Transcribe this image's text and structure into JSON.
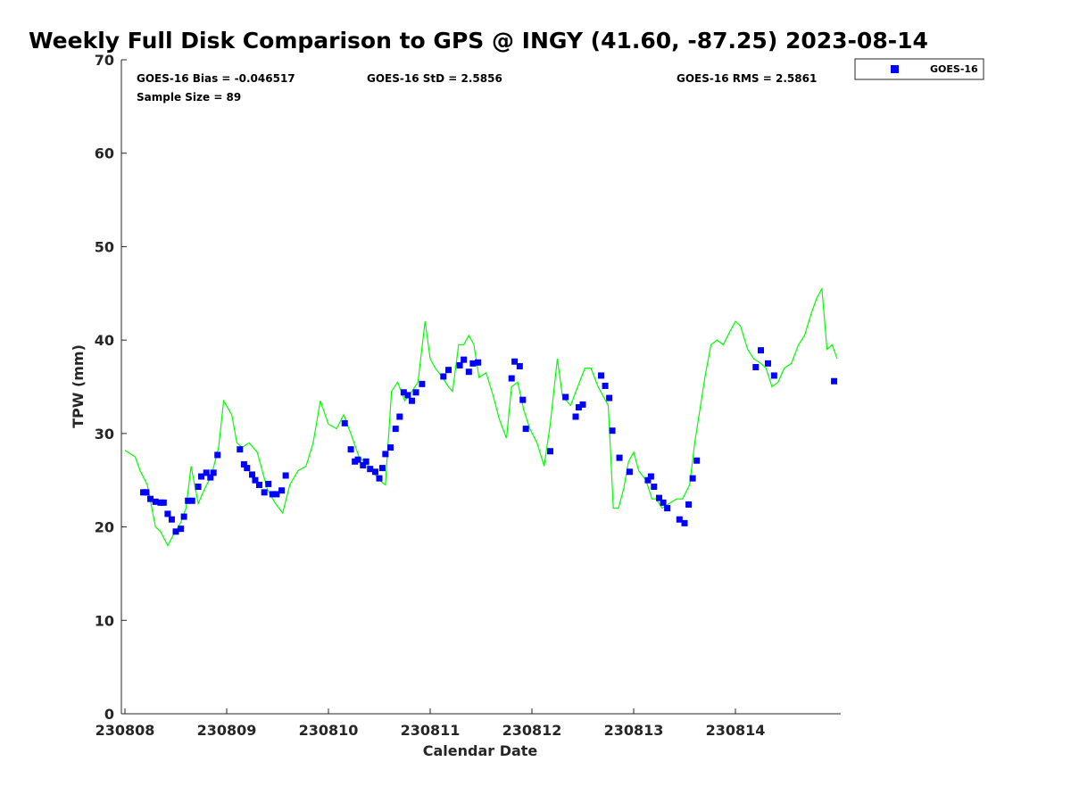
{
  "chart_data": {
    "type": "scatter",
    "title": "Weekly Full Disk Comparison to GPS @ INGY (41.60, -87.25) 2023-08-14",
    "xlabel": "Calendar Date",
    "ylabel": "TPW (mm)",
    "ylim": [
      0,
      70
    ],
    "yticks": [
      0,
      10,
      20,
      30,
      40,
      50,
      60,
      70
    ],
    "xlim_day_fraction": [
      0,
      7.0
    ],
    "xticks": [
      {
        "label": "230808",
        "day": 0
      },
      {
        "label": "230809",
        "day": 1
      },
      {
        "label": "230810",
        "day": 2
      },
      {
        "label": "230811",
        "day": 3
      },
      {
        "label": "230812",
        "day": 4
      },
      {
        "label": "230813",
        "day": 5
      },
      {
        "label": "230814",
        "day": 6
      }
    ],
    "grid": false,
    "legend_position": "top-right",
    "stats": {
      "bias": "GOES-16 Bias = -0.046517",
      "std": "GOES-16 StD = 2.5856",
      "rms": "GOES-16 RMS = 2.5861",
      "sample": "Sample Size = 89"
    },
    "colors": {
      "goes": "#0000ff",
      "gps": "#00ff00",
      "axis": "#262626"
    },
    "series": [
      {
        "name": "GOES-16",
        "marker": "square",
        "x": [
          0.18,
          0.21,
          0.25,
          0.3,
          0.35,
          0.38,
          0.42,
          0.46,
          0.5,
          0.55,
          0.58,
          0.62,
          0.66,
          0.72,
          0.75,
          0.8,
          0.84,
          0.87,
          0.91,
          1.13,
          1.17,
          1.2,
          1.25,
          1.28,
          1.32,
          1.37,
          1.41,
          1.45,
          1.49,
          1.54,
          1.58,
          2.16,
          2.22,
          2.26,
          2.29,
          2.34,
          2.37,
          2.41,
          2.46,
          2.5,
          2.53,
          2.56,
          2.61,
          2.66,
          2.7,
          2.74,
          2.78,
          2.82,
          2.86,
          2.92,
          3.13,
          3.18,
          3.29,
          3.33,
          3.38,
          3.42,
          3.47,
          3.8,
          3.83,
          3.88,
          3.91,
          3.94,
          4.18,
          4.33,
          4.43,
          4.46,
          4.5,
          4.68,
          4.72,
          4.76,
          4.79,
          4.86,
          4.96,
          5.14,
          5.17,
          5.2,
          5.25,
          5.29,
          5.33,
          5.45,
          5.5,
          5.54,
          5.58,
          5.62,
          6.2,
          6.25,
          6.32,
          6.38,
          6.97
        ],
        "y": [
          23.7,
          23.7,
          23.0,
          22.7,
          22.6,
          22.6,
          21.4,
          20.8,
          19.5,
          19.8,
          21.1,
          22.8,
          22.8,
          24.3,
          25.4,
          25.8,
          25.3,
          25.8,
          27.7,
          28.3,
          26.7,
          26.3,
          25.6,
          25.0,
          24.5,
          23.7,
          24.6,
          23.5,
          23.5,
          23.9,
          25.5,
          31.1,
          28.3,
          27.0,
          27.2,
          26.6,
          27.0,
          26.2,
          25.9,
          25.2,
          26.3,
          27.8,
          28.5,
          30.5,
          31.8,
          34.4,
          34.1,
          33.5,
          34.4,
          35.3,
          36.1,
          36.8,
          37.3,
          37.9,
          36.6,
          37.5,
          37.6,
          35.9,
          37.7,
          37.2,
          33.6,
          30.5,
          28.1,
          33.9,
          31.8,
          32.8,
          33.1,
          36.2,
          35.1,
          33.8,
          30.3,
          27.4,
          25.9,
          25.0,
          25.4,
          24.3,
          23.1,
          22.6,
          22.0,
          20.8,
          20.4,
          22.4,
          25.2,
          27.1,
          37.1,
          38.9,
          37.5,
          36.2,
          35.6
        ]
      },
      {
        "name": "",
        "marker": "line",
        "x": [
          0.0,
          0.1,
          0.15,
          0.22,
          0.3,
          0.35,
          0.42,
          0.48,
          0.55,
          0.6,
          0.65,
          0.72,
          0.78,
          0.85,
          0.92,
          0.97,
          1.05,
          1.1,
          1.15,
          1.22,
          1.3,
          1.4,
          1.48,
          1.55,
          1.62,
          1.7,
          1.78,
          1.85,
          1.92,
          2.0,
          2.08,
          2.15,
          2.22,
          2.3,
          2.4,
          2.5,
          2.56,
          2.62,
          2.68,
          2.75,
          2.82,
          2.88,
          2.95,
          3.0,
          3.05,
          3.12,
          3.18,
          3.22,
          3.28,
          3.33,
          3.38,
          3.43,
          3.48,
          3.55,
          3.62,
          3.68,
          3.75,
          3.8,
          3.86,
          3.92,
          3.98,
          4.05,
          4.12,
          4.18,
          4.25,
          4.3,
          4.38,
          4.45,
          4.52,
          4.58,
          4.65,
          4.7,
          4.75,
          4.8,
          4.85,
          4.9,
          4.95,
          5.0,
          5.05,
          5.12,
          5.18,
          5.22,
          5.28,
          5.35,
          5.42,
          5.48,
          5.55,
          5.6,
          5.65,
          5.7,
          5.76,
          5.82,
          5.88,
          5.95,
          6.0,
          6.05,
          6.12,
          6.18,
          6.25,
          6.3,
          6.36,
          6.42,
          6.48,
          6.55,
          6.62,
          6.68,
          6.75,
          6.8,
          6.85,
          6.9,
          6.95,
          7.0
        ],
        "y": [
          28.2,
          27.5,
          26.0,
          24.5,
          20.0,
          19.5,
          18.0,
          19.2,
          20.5,
          22.0,
          26.5,
          22.5,
          24.0,
          25.5,
          28.5,
          33.5,
          32.0,
          29.0,
          28.5,
          29.0,
          28.0,
          24.0,
          22.5,
          21.5,
          24.5,
          26.0,
          26.5,
          29.0,
          33.5,
          31.0,
          30.5,
          32.0,
          30.0,
          27.5,
          26.5,
          25.0,
          24.5,
          34.5,
          35.5,
          33.5,
          34.5,
          35.5,
          42.0,
          38.0,
          37.0,
          36.0,
          35.0,
          34.5,
          39.5,
          39.5,
          40.5,
          39.5,
          36.0,
          36.5,
          34.0,
          31.5,
          29.5,
          35.0,
          35.5,
          32.5,
          30.5,
          29.0,
          26.5,
          31.0,
          38.0,
          34.0,
          33.0,
          35.0,
          37.0,
          37.0,
          35.0,
          34.0,
          33.0,
          22.0,
          22.0,
          24.0,
          27.0,
          28.0,
          26.0,
          25.0,
          23.0,
          23.0,
          22.0,
          22.5,
          23.0,
          23.0,
          24.5,
          29.0,
          32.5,
          36.0,
          39.5,
          40.0,
          39.5,
          41.0,
          42.0,
          41.5,
          39.0,
          38.0,
          37.5,
          37.0,
          35.0,
          35.5,
          37.0,
          37.5,
          39.5,
          40.5,
          43.0,
          44.5,
          45.5,
          39.0,
          39.5,
          38.0
        ]
      }
    ]
  }
}
